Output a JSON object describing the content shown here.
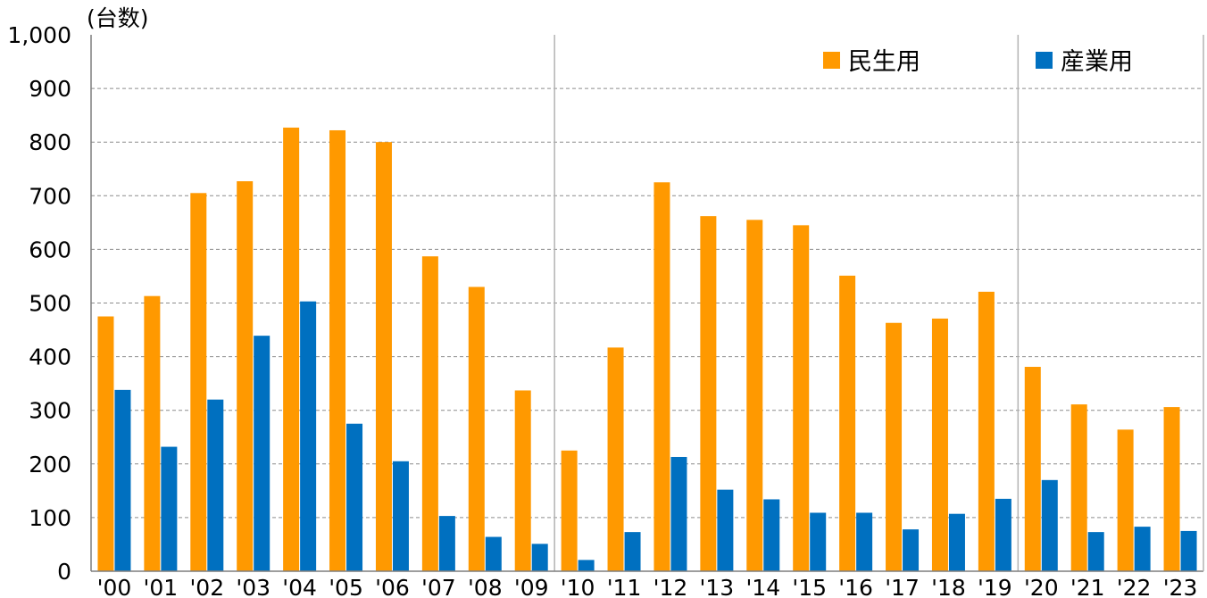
{
  "chart_data": {
    "type": "bar",
    "unit_label": "(台数)",
    "categories": [
      "'00",
      "'01",
      "'02",
      "'03",
      "'04",
      "'05",
      "'06",
      "'07",
      "'08",
      "'09",
      "'10",
      "'11",
      "'12",
      "'13",
      "'14",
      "'15",
      "'16",
      "'17",
      "'18",
      "'19",
      "'20",
      "'21",
      "'22",
      "'23"
    ],
    "series": [
      {
        "name": "民生用",
        "color": "#FF9900",
        "values": [
          475,
          513,
          705,
          727,
          827,
          822,
          800,
          587,
          530,
          337,
          225,
          417,
          725,
          662,
          655,
          645,
          551,
          463,
          471,
          521,
          381,
          311,
          264,
          306
        ]
      },
      {
        "name": "産業用",
        "color": "#0070C0",
        "values": [
          338,
          232,
          320,
          439,
          503,
          275,
          205,
          103,
          64,
          51,
          21,
          73,
          213,
          152,
          134,
          109,
          109,
          78,
          107,
          135,
          170,
          73,
          83,
          75
        ]
      }
    ],
    "ylim": [
      0,
      1000
    ],
    "yticks": [
      "0",
      "100",
      "200",
      "300",
      "400",
      "500",
      "600",
      "700",
      "800",
      "900",
      "1,000"
    ],
    "grid": true,
    "legend_position": "top-right",
    "decade_separators_after": [
      "'09",
      "'19"
    ]
  }
}
